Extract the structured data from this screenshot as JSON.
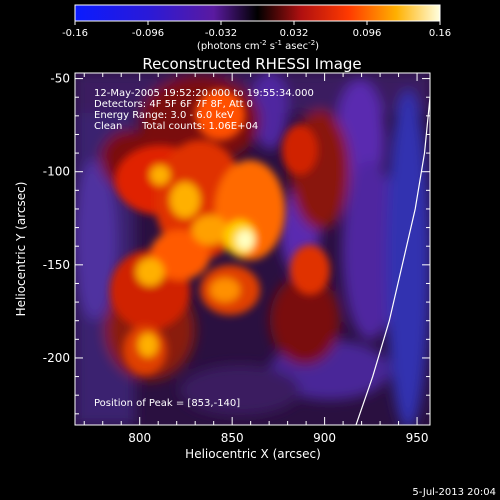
{
  "chart_data": {
    "type": "heatmap",
    "title": "Reconstructed RHESSI Image",
    "xlabel": "Heliocentric X (arcsec)",
    "ylabel": "Heliocentric Y (arcsec)",
    "xlim": [
      765,
      957
    ],
    "ylim": [
      -236,
      -47
    ],
    "x_ticks": [
      800,
      850,
      900,
      950
    ],
    "y_ticks": [
      -50,
      -100,
      -150,
      -200
    ],
    "colorbar": {
      "label_prefix": "(photons cm",
      "label_unit_mid": " s",
      "label_unit_end": " asec",
      "label_suffix": ")",
      "sup_cm": "-2",
      "sup_s": "-1",
      "sup_asec": "-2",
      "range": [
        -0.16,
        0.16
      ],
      "ticks": [
        "-0.16",
        "-0.096",
        "-0.032",
        "0.032",
        "0.096",
        "0.16"
      ]
    },
    "annotations": {
      "time": "12-May-2005 19:52:20.000 to 19:55:34.000",
      "detectors": "Detectors: 4F 5F 6F 7F 8F, Att 0",
      "energy": "Energy Range: 3.0 - 6.0 keV",
      "clean_label": "Clean",
      "counts": "Total counts: 1.06E+04",
      "peak": "Position of Peak = [853,-140]"
    },
    "peak": [
      853,
      -140
    ],
    "limb_curve": [
      [
        917,
        -236
      ],
      [
        926,
        -210
      ],
      [
        935,
        -180
      ],
      [
        942,
        -150
      ],
      [
        949,
        -120
      ],
      [
        954,
        -90
      ],
      [
        957,
        -60
      ]
    ],
    "footer_date": "5-Jul-2013 20:04"
  }
}
